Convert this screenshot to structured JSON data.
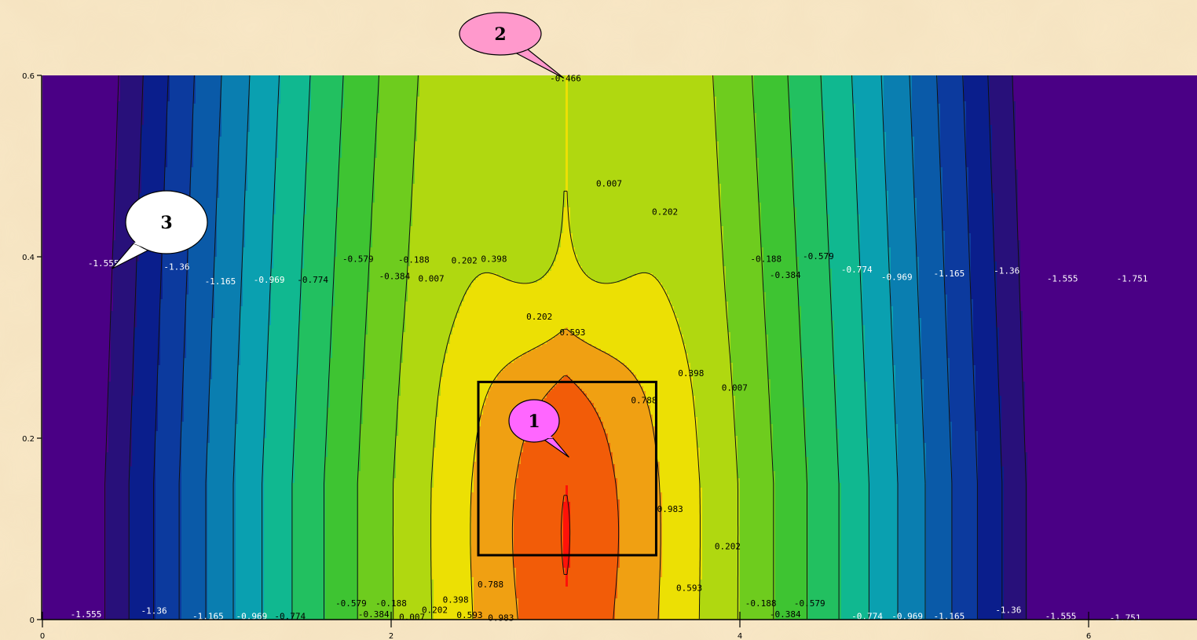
{
  "chart_data": {
    "type": "heatmap",
    "title": "",
    "xlabel": "",
    "ylabel": "",
    "xlim": [
      0,
      6.6
    ],
    "ylim": [
      0,
      0.6
    ],
    "x_ticks": [
      "0",
      "2",
      "4",
      "6"
    ],
    "y_ticks": [
      "0",
      "0.2",
      "0.4",
      "0.6"
    ],
    "contour_levels": [
      -1.751,
      -1.555,
      -1.36,
      -1.165,
      -0.969,
      -0.774,
      -0.579,
      -0.384,
      -0.188,
      0.007,
      0.202,
      0.398,
      0.593,
      0.788,
      0.983
    ],
    "level_colors": [
      "#4a0085",
      "#28107a",
      "#0a1e8c",
      "#0c3a9e",
      "#0a5aa8",
      "#0a7eb0",
      "#0aa0b0",
      "#10b890",
      "#22c060",
      "#3ec432",
      "#6ecc1e",
      "#b0d810",
      "#ece004",
      "#f0a012",
      "#f25c08",
      "#ff1208"
    ],
    "contour_labels": [
      {
        "text": "-1.555",
        "x": 0.35,
        "y": 0.393
      },
      {
        "text": "-1.36",
        "x": 0.77,
        "y": 0.389
      },
      {
        "text": "-1.165",
        "x": 1.02,
        "y": 0.373
      },
      {
        "text": "-0.969",
        "x": 1.3,
        "y": 0.375
      },
      {
        "text": "-0.774",
        "x": 1.55,
        "y": 0.375
      },
      {
        "text": "-0.579",
        "x": 1.81,
        "y": 0.398
      },
      {
        "text": "-0.384",
        "x": 2.02,
        "y": 0.379
      },
      {
        "text": "-0.188",
        "x": 2.13,
        "y": 0.397
      },
      {
        "text": "0.007",
        "x": 2.23,
        "y": 0.376
      },
      {
        "text": "0.202",
        "x": 2.42,
        "y": 0.396
      },
      {
        "text": "0.398",
        "x": 2.59,
        "y": 0.398
      },
      {
        "text": "0.007",
        "x": 3.25,
        "y": 0.481
      },
      {
        "text": "0.202",
        "x": 3.57,
        "y": 0.45
      },
      {
        "text": "0.202",
        "x": 2.85,
        "y": 0.334
      },
      {
        "text": "0.593",
        "x": 3.04,
        "y": 0.317
      },
      {
        "text": "0.398",
        "x": 3.72,
        "y": 0.272
      },
      {
        "text": "0.007",
        "x": 3.97,
        "y": 0.256
      },
      {
        "text": "0.788",
        "x": 3.45,
        "y": 0.242
      },
      {
        "text": "0.983",
        "x": 3.6,
        "y": 0.122
      },
      {
        "text": "0.202",
        "x": 3.93,
        "y": 0.081
      },
      {
        "text": "0.593",
        "x": 3.71,
        "y": 0.035
      },
      {
        "text": "0.788",
        "x": 2.57,
        "y": 0.039
      },
      {
        "text": "-0.188",
        "x": 4.15,
        "y": 0.398
      },
      {
        "text": "-0.579",
        "x": 4.45,
        "y": 0.401
      },
      {
        "text": "-0.384",
        "x": 4.26,
        "y": 0.38
      },
      {
        "text": "-0.774",
        "x": 4.67,
        "y": 0.386
      },
      {
        "text": "-0.969",
        "x": 4.9,
        "y": 0.378
      },
      {
        "text": "-1.165",
        "x": 5.2,
        "y": 0.382
      },
      {
        "text": "-1.36",
        "x": 5.53,
        "y": 0.385
      },
      {
        "text": "-1.555",
        "x": 5.85,
        "y": 0.376
      },
      {
        "text": "-1.751",
        "x": 6.25,
        "y": 0.376
      },
      {
        "text": "-0.466",
        "x": 3.0,
        "y": 0.597
      },
      {
        "text": "-1.555",
        "x": 0.25,
        "y": 0.006
      },
      {
        "text": "-1.36",
        "x": 0.64,
        "y": 0.01
      },
      {
        "text": "-1.165",
        "x": 0.95,
        "y": 0.004
      },
      {
        "text": "-0.969",
        "x": 1.2,
        "y": 0.004
      },
      {
        "text": "-0.774",
        "x": 1.42,
        "y": 0.004
      },
      {
        "text": "-0.579",
        "x": 1.77,
        "y": 0.018
      },
      {
        "text": "-0.384",
        "x": 1.9,
        "y": 0.006
      },
      {
        "text": "-0.188",
        "x": 2.0,
        "y": 0.018
      },
      {
        "text": "0.007",
        "x": 2.12,
        "y": 0.003
      },
      {
        "text": "0.202",
        "x": 2.25,
        "y": 0.011
      },
      {
        "text": "0.398",
        "x": 2.37,
        "y": 0.022
      },
      {
        "text": "0.593",
        "x": 2.45,
        "y": 0.005
      },
      {
        "text": "0.983",
        "x": 2.63,
        "y": 0.002
      },
      {
        "text": "-0.188",
        "x": 4.12,
        "y": 0.018
      },
      {
        "text": "-0.384",
        "x": 4.26,
        "y": 0.006
      },
      {
        "text": "-0.579",
        "x": 4.4,
        "y": 0.018
      },
      {
        "text": "-0.774",
        "x": 4.73,
        "y": 0.004
      },
      {
        "text": "-0.969",
        "x": 4.96,
        "y": 0.004
      },
      {
        "text": "-1.165",
        "x": 5.2,
        "y": 0.004
      },
      {
        "text": "-1.36",
        "x": 5.54,
        "y": 0.011
      },
      {
        "text": "-1.555",
        "x": 5.84,
        "y": 0.004
      },
      {
        "text": "-1.751",
        "x": 6.21,
        "y": 0.002
      }
    ],
    "highlight_box": {
      "x": [
        2.5,
        3.52
      ],
      "y": [
        0.071,
        0.262
      ]
    },
    "callouts": [
      {
        "label": "1",
        "color": "#ff66ff",
        "x": 3.02,
        "y": 0.179
      },
      {
        "label": "2",
        "color": "#ff99cc",
        "x": 2.99,
        "y": 0.597
      },
      {
        "label": "3",
        "color": "#ffffff",
        "x": 0.4,
        "y": 0.387
      }
    ]
  }
}
